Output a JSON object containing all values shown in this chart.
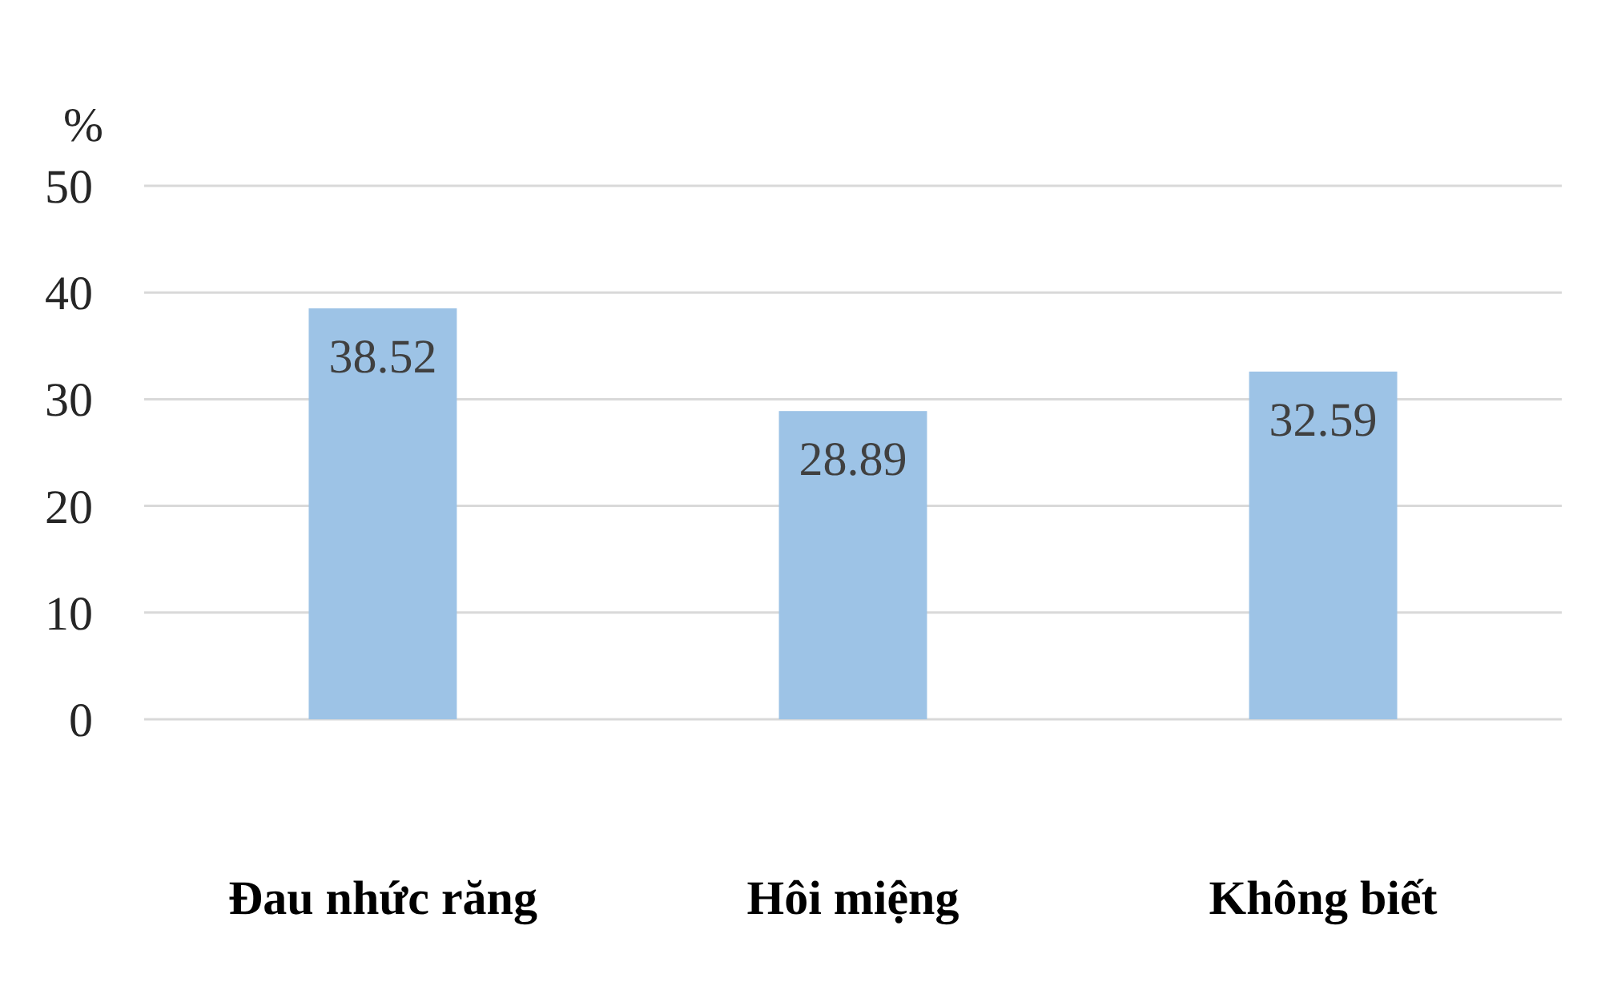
{
  "chart_data": {
    "type": "bar",
    "ylabel": "%",
    "categories": [
      "Đau nhức răng",
      "Hôi miệng",
      "Không biết"
    ],
    "values": [
      38.52,
      28.89,
      32.59
    ],
    "color": "#9dc3e6",
    "ylim": [
      0,
      50
    ],
    "yticks": [
      0,
      10,
      20,
      30,
      40,
      50
    ],
    "grid": "y",
    "data_labels": true
  }
}
